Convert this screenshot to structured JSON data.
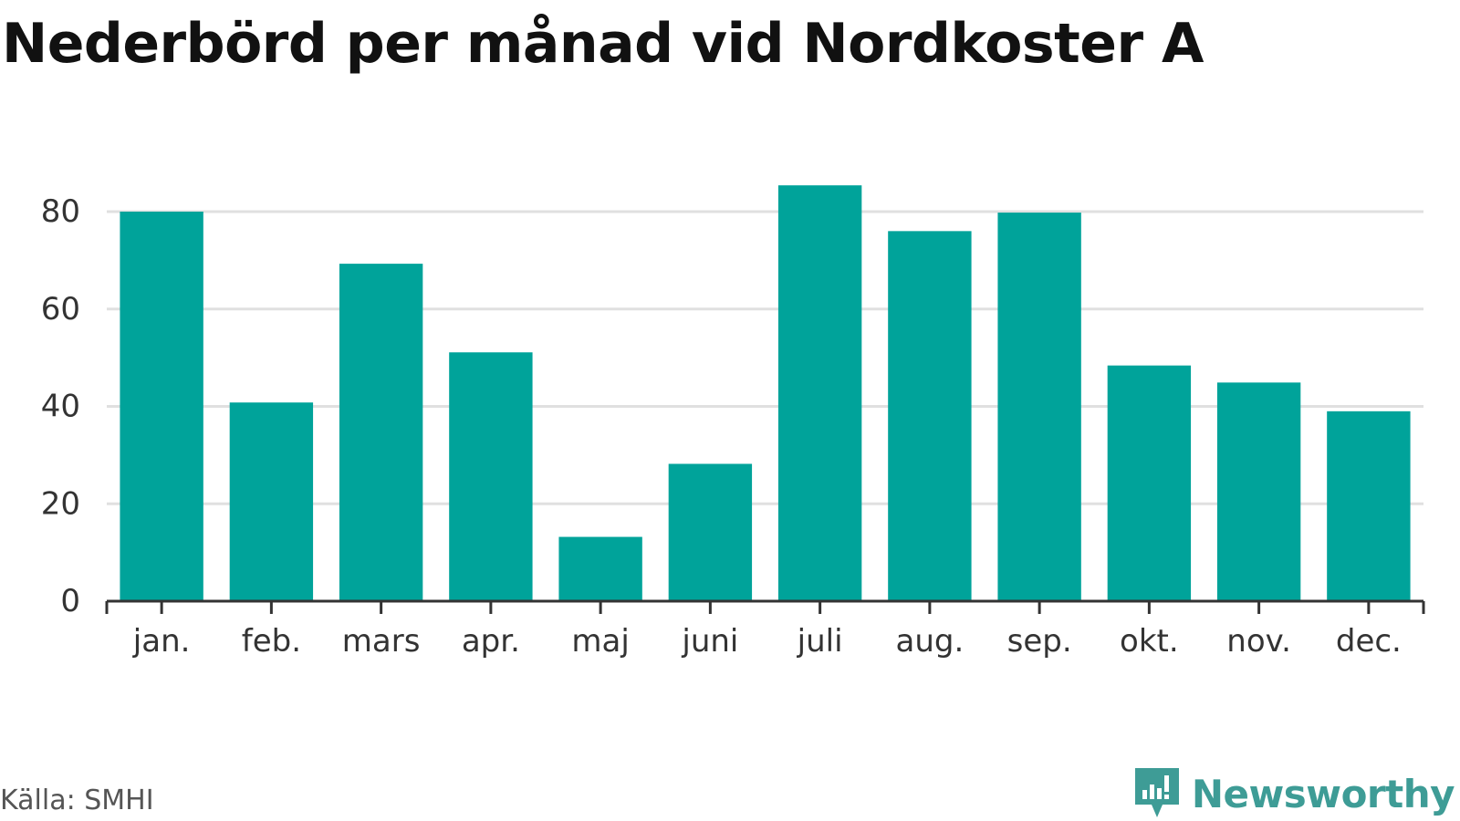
{
  "chart_data": {
    "type": "bar",
    "title": "Nederbörd per månad vid Nordkoster A",
    "xlabel": "",
    "ylabel": "",
    "categories": [
      "jan.",
      "feb.",
      "mars",
      "apr.",
      "maj",
      "juni",
      "juli",
      "aug.",
      "sep.",
      "okt.",
      "nov.",
      "dec."
    ],
    "values": [
      80,
      40.8,
      69.3,
      51.1,
      13.2,
      28.2,
      85.4,
      76,
      79.8,
      48.4,
      44.9,
      39
    ],
    "ylim": [
      0,
      90
    ],
    "yticks": [
      0,
      20,
      40,
      60,
      80
    ],
    "grid": true,
    "legend": "none",
    "colors": {
      "bar": "#00a39a",
      "grid": "#e0e0e0",
      "axis": "#333333"
    }
  },
  "footer": {
    "source": "Källa: SMHI",
    "brand": "Newsworthy",
    "brand_color": "#3e9c96",
    "brand_icon": "newsworthy-logo-icon"
  }
}
